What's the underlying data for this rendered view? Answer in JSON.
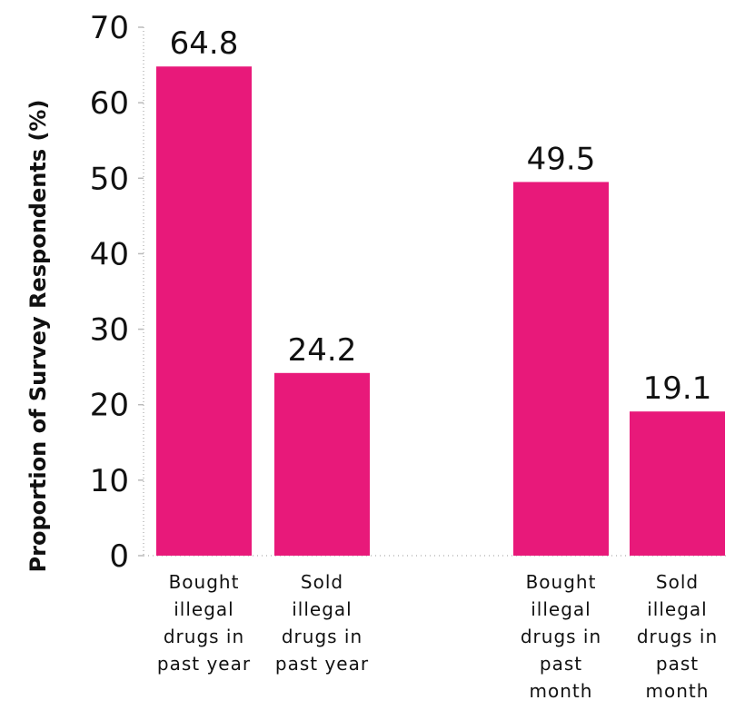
{
  "chart_data": {
    "type": "bar",
    "title": "",
    "xlabel": "",
    "ylabel": "Proportion of Survey Respondents (%)",
    "ylim": [
      0,
      70
    ],
    "yticks": [
      "0",
      "10",
      "20",
      "30",
      "40",
      "50",
      "60",
      "70"
    ],
    "grid": false,
    "bar_color": "#e8197a",
    "categories": [
      [
        "Bought",
        "illegal",
        "drugs in",
        "past year"
      ],
      [
        "Sold",
        "illegal",
        "drugs in",
        "past year"
      ],
      [
        "Bought",
        "illegal",
        "drugs in",
        "past",
        "month"
      ],
      [
        "Sold",
        "illegal",
        "drugs in",
        "past",
        "month"
      ]
    ],
    "values": [
      64.8,
      24.2,
      49.5,
      19.1
    ],
    "value_labels": [
      "64.8",
      "24.2",
      "49.5",
      "19.1"
    ]
  }
}
